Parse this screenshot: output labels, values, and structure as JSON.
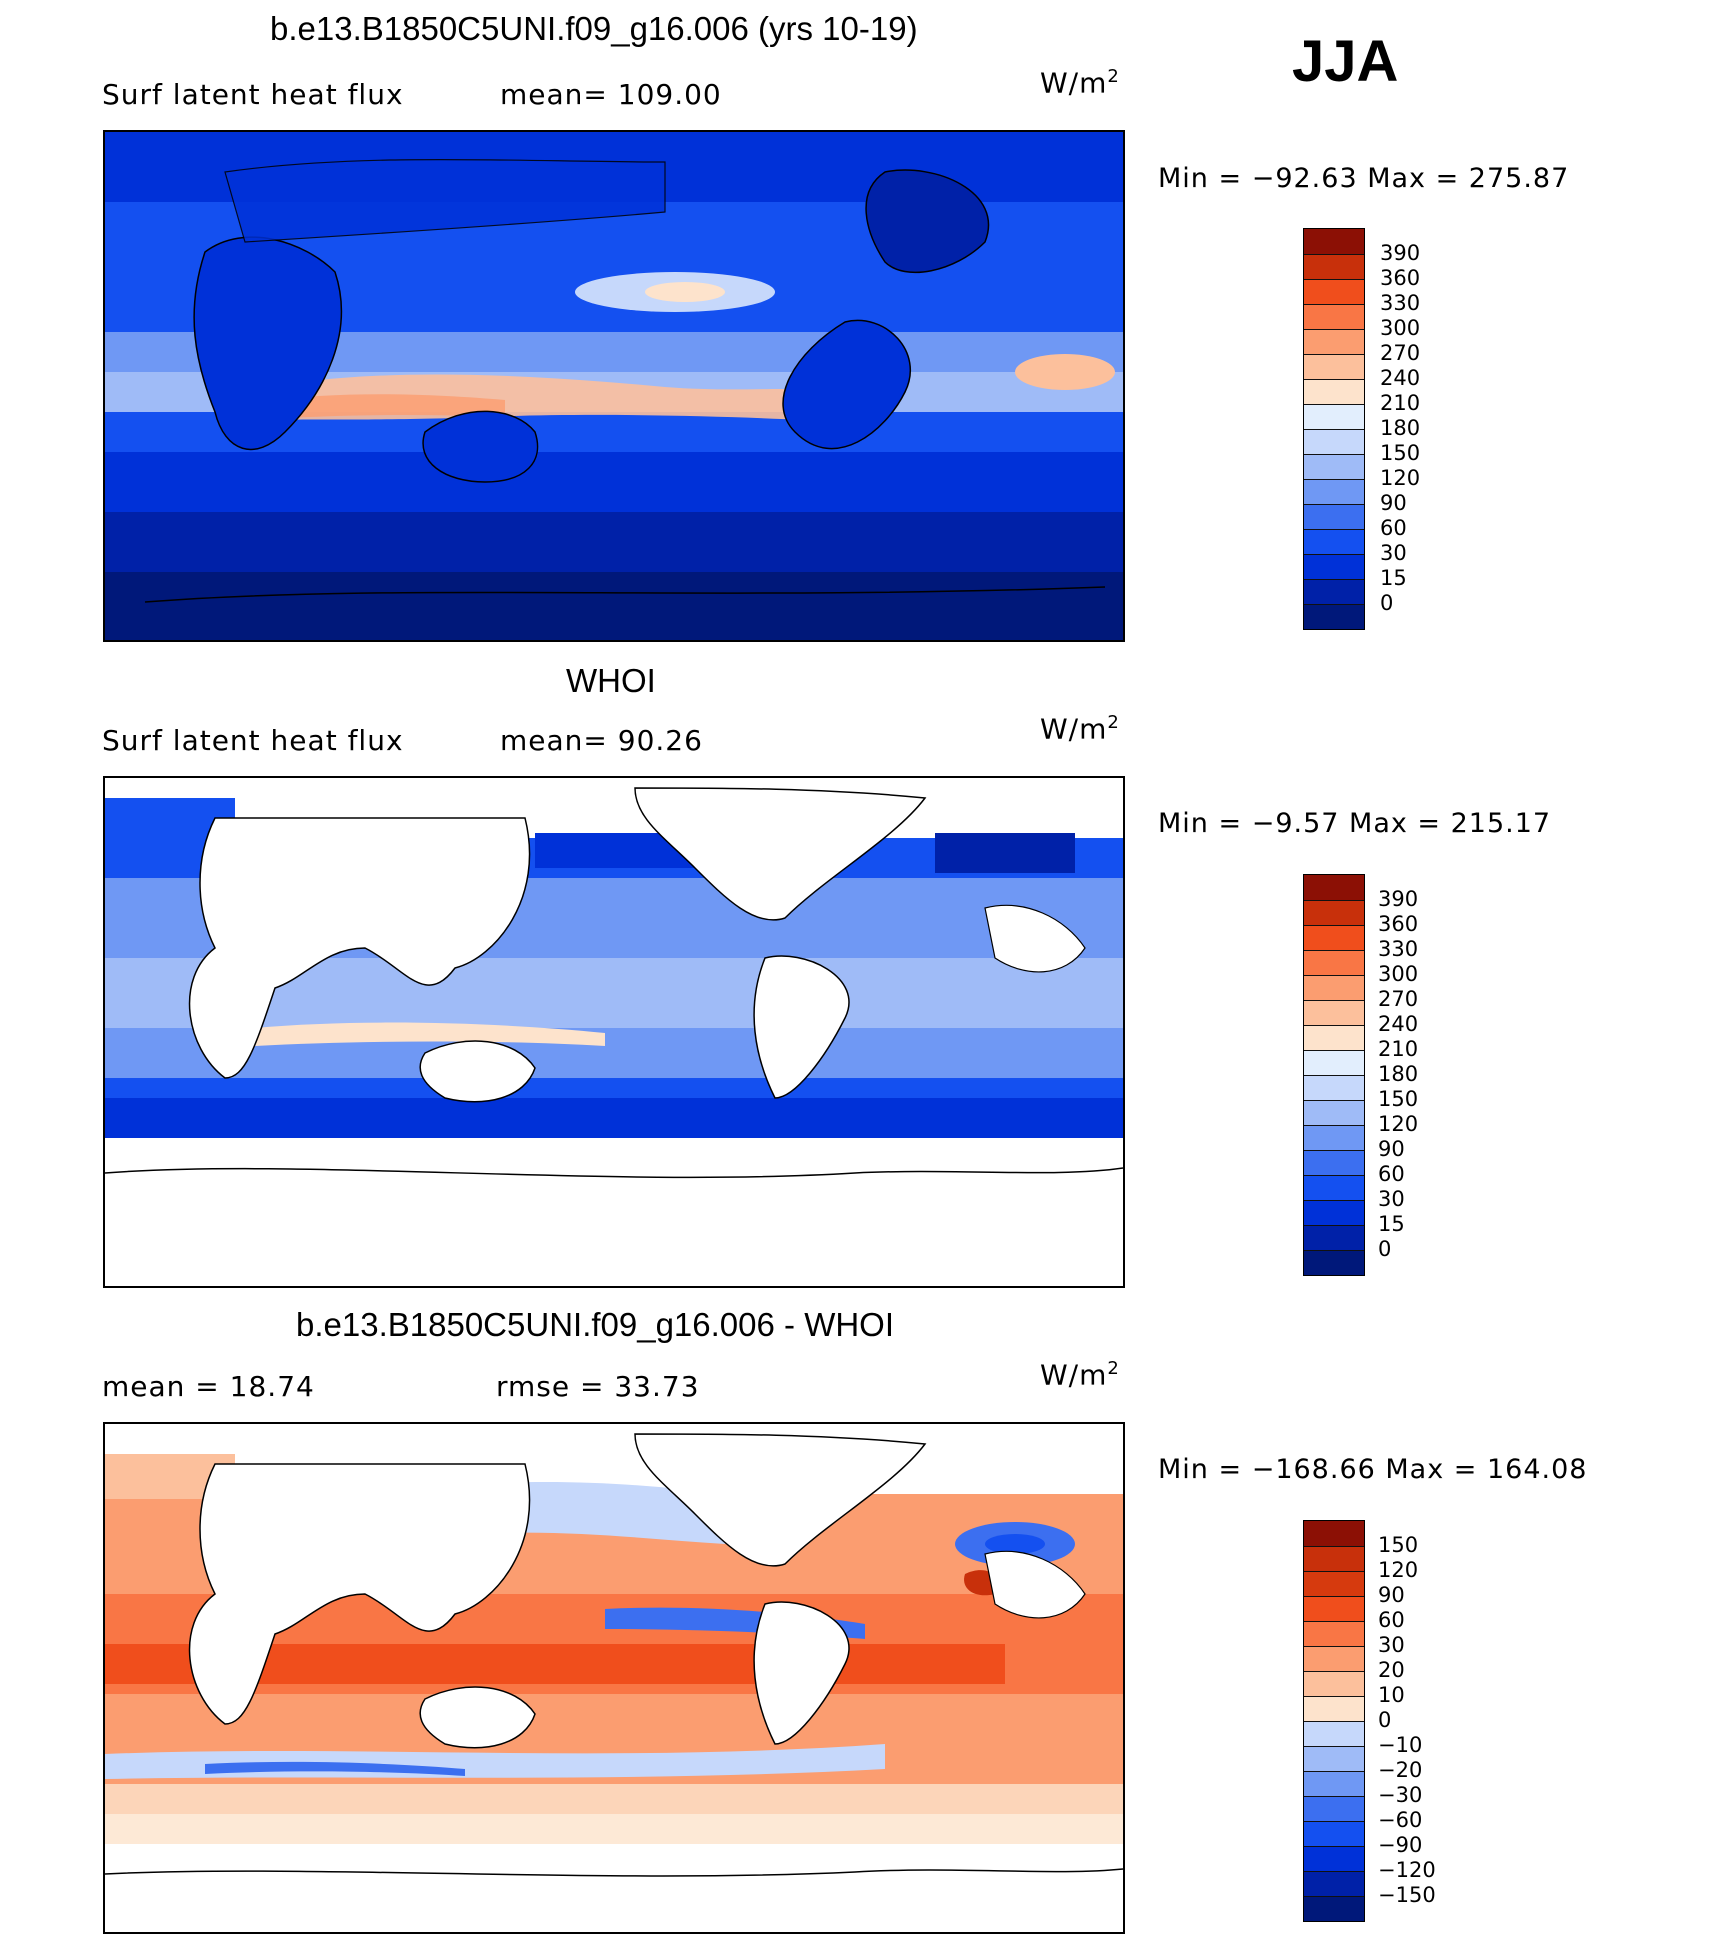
{
  "season": "JJA",
  "colors": {
    "abs": [
      "#00187a",
      "#0021a8",
      "#0031d8",
      "#1450f0",
      "#3c6ff0",
      "#6f98f4",
      "#9fbbf7",
      "#c6d8fb",
      "#e2eefd",
      "#fde3cc",
      "#fcc09c",
      "#fb9d70",
      "#f97645",
      "#f04e1c",
      "#c8300b",
      "#8c1005"
    ],
    "diff": [
      "#00187a",
      "#0021a8",
      "#0031d8",
      "#1450f0",
      "#3c6ff0",
      "#6f98f4",
      "#9fbbf7",
      "#c6d8fb",
      "#fde3cc",
      "#fcc09c",
      "#fb9d70",
      "#f97645",
      "#f04e1c",
      "#d63a0e",
      "#c8300b",
      "#8c1005"
    ]
  },
  "panels": [
    {
      "title": "b.e13.B1850C5UNI.f09_g16.006 (yrs 10-19)",
      "left_label": "Surf  latent  heat  flux",
      "mid_label": "mean=  109.00",
      "units": "W/m",
      "units_exp": "2",
      "minmax": "Min  =  −92.63  Max  =  275.87",
      "colorbar_labels": [
        "390",
        "360",
        "330",
        "300",
        "270",
        "240",
        "210",
        "180",
        "150",
        "120",
        "90",
        "60",
        "30",
        "15",
        "0"
      ],
      "map_type": "model"
    },
    {
      "title": "WHOI",
      "left_label": "Surf  latent  heat  flux",
      "mid_label": "mean=   90.26",
      "units": "W/m",
      "units_exp": "2",
      "minmax": "Min  =   −9.57  Max  =  215.17",
      "colorbar_labels": [
        "390",
        "360",
        "330",
        "300",
        "270",
        "240",
        "210",
        "180",
        "150",
        "120",
        "90",
        "60",
        "30",
        "15",
        "0"
      ],
      "map_type": "obs"
    },
    {
      "title": "b.e13.B1850C5UNI.f09_g16.006 - WHOI",
      "left_label": "mean  =    18.74",
      "mid_label": "rmse  =    33.73",
      "units": "W/m",
      "units_exp": "2",
      "minmax": "Min  =  −168.66  Max  =  164.08",
      "colorbar_labels": [
        "150",
        "120",
        "90",
        "60",
        "30",
        "20",
        "10",
        "0",
        "−10",
        "−20",
        "−30",
        "−60",
        "−90",
        "−120",
        "−150"
      ],
      "map_type": "diff"
    }
  ]
}
